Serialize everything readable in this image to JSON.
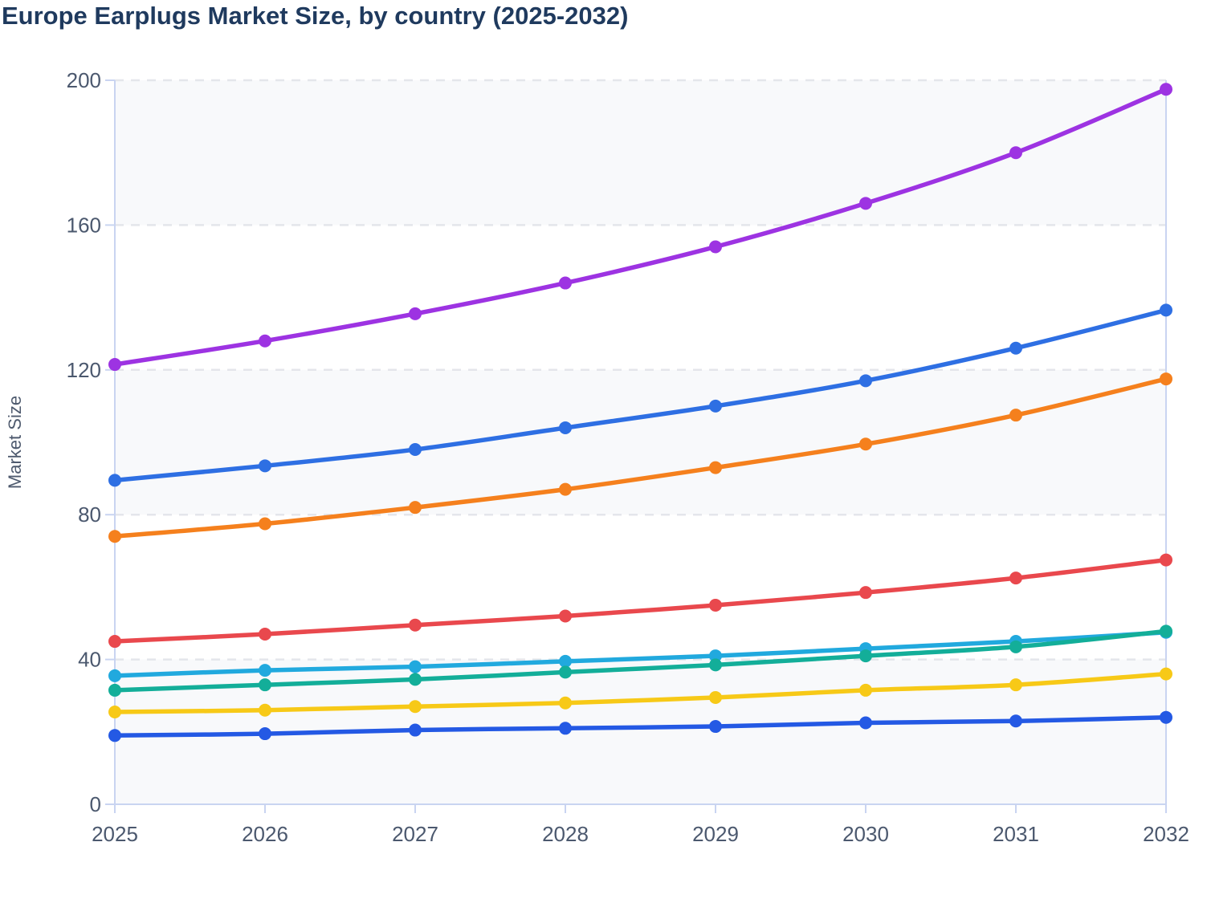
{
  "page": {
    "title": "Europe Earplugs Market Size, by country (2025-2032)"
  },
  "chart_data": {
    "type": "line",
    "title": "Europe Earplugs Market Size, by country (2025-2032)",
    "xlabel": "",
    "ylabel": "Market Size",
    "x": [
      2025,
      2026,
      2027,
      2028,
      2029,
      2030,
      2031,
      2032
    ],
    "x_tick_labels": [
      "2025",
      "2026",
      "2027",
      "2028",
      "2029",
      "2030",
      "2031",
      "2032"
    ],
    "y_ticks": [
      0,
      40,
      80,
      120,
      160,
      200
    ],
    "y_tick_labels": [
      "0",
      "40",
      "80",
      "120",
      "160",
      "200"
    ],
    "ylim": [
      0,
      200
    ],
    "legend": "none",
    "grid": "horizontal-dashed",
    "banded_rows": [
      [
        0,
        40
      ],
      [
        80,
        120
      ],
      [
        160,
        200
      ]
    ],
    "marker": "circle",
    "series": [
      {
        "name": "series-purple",
        "color": "#9d33e2",
        "values": [
          121.5,
          128,
          135.5,
          144,
          154,
          166,
          180,
          197.5
        ]
      },
      {
        "name": "series-blue",
        "color": "#2e6fe3",
        "values": [
          89.5,
          93.5,
          98,
          104,
          110,
          117,
          126,
          136.5
        ]
      },
      {
        "name": "series-orange",
        "color": "#f5801d",
        "values": [
          74,
          77.5,
          82,
          87,
          93,
          99.5,
          107.5,
          117.5
        ]
      },
      {
        "name": "series-red",
        "color": "#e9484d",
        "values": [
          45,
          47,
          49.5,
          52,
          55,
          58.5,
          62.5,
          67.5
        ]
      },
      {
        "name": "series-cyan",
        "color": "#21a9de",
        "values": [
          35.5,
          37,
          38,
          39.5,
          41,
          43,
          45,
          47.5
        ]
      },
      {
        "name": "series-teal",
        "color": "#13ae99",
        "values": [
          31.5,
          33,
          34.5,
          36.5,
          38.5,
          41,
          43.5,
          47.8
        ]
      },
      {
        "name": "series-yellow",
        "color": "#f7c917",
        "values": [
          25.5,
          26,
          27,
          28,
          29.5,
          31.5,
          33,
          36
        ]
      },
      {
        "name": "series-royal",
        "color": "#2459e4",
        "values": [
          19,
          19.5,
          20.5,
          21,
          21.5,
          22.5,
          23,
          24
        ]
      }
    ],
    "colors": {
      "band_fill": "#f8f9fb",
      "gridline": "#e4e6eb",
      "axis_line": "#c9d4f1",
      "tick_label": "#4b586e",
      "axis_title": "#4e5a6e",
      "title": "#1f3a5e"
    }
  }
}
